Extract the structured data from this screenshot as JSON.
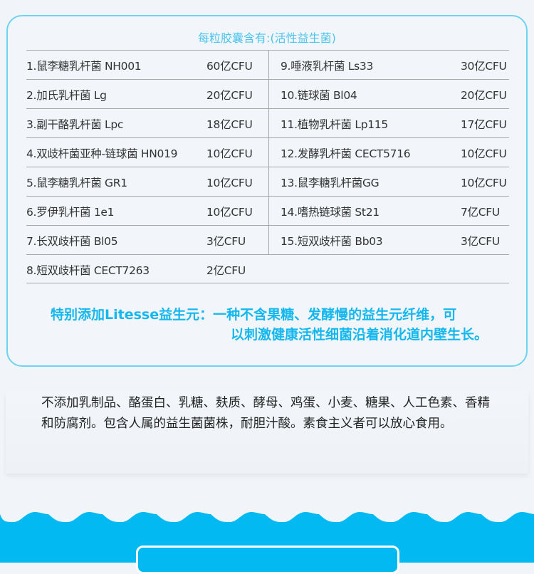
{
  "card": {
    "title": "每粒胶囊含有:(活性益生菌)",
    "left": [
      {
        "name": "1.鼠李糖乳杆菌 NH001",
        "amount": "60亿CFU"
      },
      {
        "name": "2.加氏乳杆菌 Lg",
        "amount": "20亿CFU"
      },
      {
        "name": "3.副干酪乳杆菌 Lpc",
        "amount": "18亿CFU"
      },
      {
        "name": "4.双歧杆菌亚种-链球菌 HN019",
        "amount": "10亿CFU"
      },
      {
        "name": "5.鼠李糖乳杆菌 GR1",
        "amount": "10亿CFU"
      },
      {
        "name": "6.罗伊乳杆菌 1e1",
        "amount": "10亿CFU"
      },
      {
        "name": "7.长双歧杆菌 Bl05",
        "amount": "3亿CFU"
      },
      {
        "name": "8.短双歧杆菌 CECT7263",
        "amount": "2亿CFU"
      }
    ],
    "right": [
      {
        "name": "9.唾液乳杆菌 Ls33",
        "amount": "30亿CFU"
      },
      {
        "name": "10.链球菌 Bl04",
        "amount": "20亿CFU"
      },
      {
        "name": "11.植物乳杆菌 Lp115",
        "amount": "17亿CFU"
      },
      {
        "name": "12.发酵乳杆菌 CECT5716",
        "amount": "10亿CFU"
      },
      {
        "name": "13.鼠李糖乳杆菌GG",
        "amount": "10亿CFU"
      },
      {
        "name": "14.嗜热链球菌 St21",
        "amount": "7亿CFU"
      },
      {
        "name": "15.短双歧杆菌 Bb03",
        "amount": "3亿CFU"
      }
    ],
    "note_line1": "特别添加Litesse益生元：一种不含果糖、发酵慢的益生元纤维，可",
    "note_line2": "以刺激健康活性细菌沿着消化道内壁生长。"
  },
  "description": "不添加乳制品、酪蛋白、乳糖、麸质、酵母、鸡蛋、小麦、糖果、人工色素、香精和防腐剂。包含人属的益生菌菌株，耐胆汁酸。素食主义者可以放心食用。",
  "colors": {
    "accent": "#14b7ee",
    "border": "#6dd3f0",
    "wave": "#03b9f2",
    "background": "#f1f5f9"
  }
}
